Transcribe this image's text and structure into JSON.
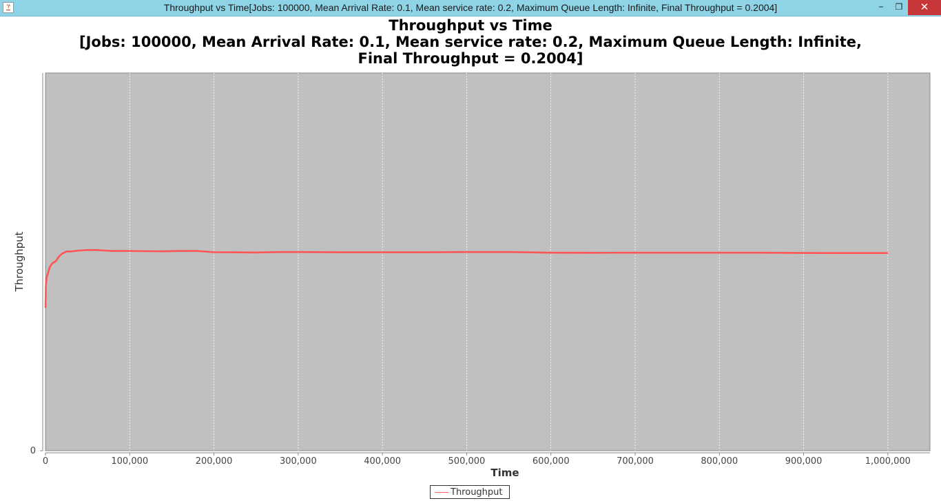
{
  "window": {
    "title": "Throughput vs Time[Jobs: 100000, Mean Arrival Rate: 0.1, Mean service rate: 0.2, Maximum Queue Length: Infinite, Final Throughput = 0.2004]",
    "minimize_label": "–",
    "maximize_label": "❐",
    "close_label": "✕",
    "icon": "java-icon"
  },
  "colors": {
    "titlebar": "#8fd4e6",
    "plot_background": "#c0c0c0",
    "series": "#ff5555",
    "close_button": "#c7373a"
  },
  "chart_data": {
    "type": "line",
    "title_lines": [
      "Throughput vs Time",
      "[Jobs: 100000, Mean Arrival Rate: 0.1, Mean service rate: 0.2, Maximum Queue Length: Infinite,",
      "Final Throughput = 0.2004]"
    ],
    "xlabel": "Time",
    "ylabel": "Throughput",
    "xlim": [
      0,
      1050000
    ],
    "ylim": [
      0,
      0.383
    ],
    "x_ticks": [
      0,
      100000,
      200000,
      300000,
      400000,
      500000,
      600000,
      700000,
      800000,
      900000,
      1000000
    ],
    "x_tick_labels": [
      "0",
      "100,000",
      "200,000",
      "300,000",
      "400,000",
      "500,000",
      "600,000",
      "700,000",
      "800,000",
      "900,000",
      "1,000,000"
    ],
    "y_ticks": [
      0
    ],
    "y_tick_labels": [
      "0"
    ],
    "grid": "vertical",
    "legend_position": "bottom-center",
    "series": [
      {
        "name": "Throughput",
        "x": [
          0,
          500,
          1500,
          3000,
          5000,
          8000,
          12000,
          16000,
          20000,
          25000,
          30000,
          40000,
          50000,
          60000,
          70000,
          80000,
          90000,
          100000,
          120000,
          140000,
          160000,
          180000,
          200000,
          220000,
          250000,
          280000,
          300000,
          350000,
          400000,
          450000,
          500000,
          550000,
          600000,
          650000,
          700000,
          750000,
          800000,
          850000,
          900000,
          950000,
          1000000
        ],
        "y": [
          0.145,
          0.168,
          0.176,
          0.18,
          0.186,
          0.19,
          0.192,
          0.197,
          0.2,
          0.202,
          0.202,
          0.203,
          0.2035,
          0.2035,
          0.203,
          0.2025,
          0.2025,
          0.2025,
          0.2023,
          0.2022,
          0.2025,
          0.2025,
          0.2013,
          0.2012,
          0.201,
          0.2015,
          0.2015,
          0.2012,
          0.2012,
          0.2012,
          0.2015,
          0.2015,
          0.2008,
          0.2007,
          0.2008,
          0.2008,
          0.2008,
          0.2008,
          0.2005,
          0.2004,
          0.2004
        ]
      }
    ]
  }
}
